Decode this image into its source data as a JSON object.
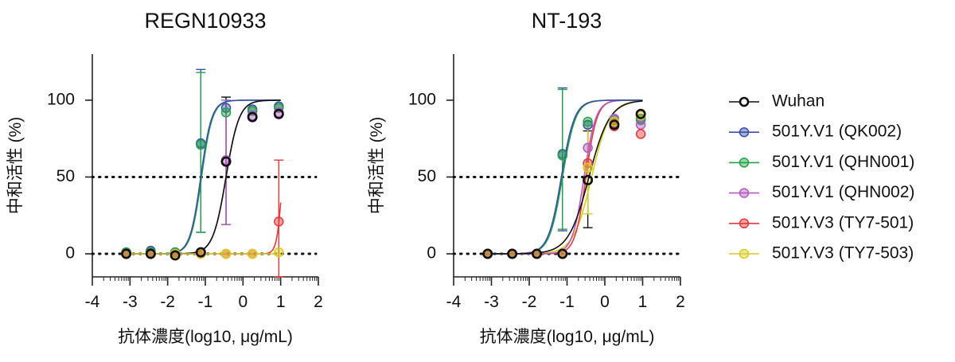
{
  "legend": [
    {
      "name": "Wuhan",
      "color": "#111111"
    },
    {
      "name": "501Y.V1 (QK002)",
      "color": "#3a4fa8"
    },
    {
      "name": "501Y.V1 (QHN001)",
      "color": "#22a34a"
    },
    {
      "name": "501Y.V1 (QHN002)",
      "color": "#b35ac4"
    },
    {
      "name": "501Y.V3 (TY7-501)",
      "color": "#e8383a"
    },
    {
      "name": "501Y.V3 (TY7-503)",
      "color": "#d8cc22"
    }
  ],
  "chart_data": [
    {
      "type": "scatter",
      "title": "REGN10933",
      "xlabel": "抗体濃度(log10, μg/mL)",
      "ylabel": "中和活性 (%)",
      "xlim": [
        -4,
        2
      ],
      "ylim": [
        -15,
        130
      ],
      "xticks": [
        -4,
        -3,
        -2,
        -1,
        0,
        1,
        2
      ],
      "yticks": [
        0,
        50,
        100
      ],
      "reference_lines": [
        0,
        50
      ],
      "series": [
        {
          "name": "Wuhan",
          "color": "#111111",
          "x": [
            -3.1,
            -2.45,
            -1.8,
            -1.12,
            -0.45,
            0.25,
            0.95
          ],
          "y": [
            0,
            0,
            -1,
            1,
            60,
            89,
            91
          ],
          "fit": {
            "ec50": -0.45,
            "hill": 2.5,
            "top": 100
          }
        },
        {
          "name": "501Y.V1 (QK002)",
          "color": "#3a4fa8",
          "x": [
            -3.1,
            -2.45,
            -1.8,
            -1.12,
            -0.45,
            0.25,
            0.95
          ],
          "y": [
            1,
            2,
            1,
            72,
            95,
            94,
            96
          ],
          "fit": {
            "ec50": -1.12,
            "hill": 3,
            "top": 100
          }
        },
        {
          "name": "501Y.V1 (QHN001)",
          "color": "#22a34a",
          "x": [
            -3.1,
            -2.45,
            -1.8,
            -1.12,
            -0.45,
            0.25,
            0.95
          ],
          "y": [
            1,
            1,
            1,
            71,
            92,
            93,
            95
          ],
          "fit": {
            "ec50": -1.1,
            "hill": 3,
            "top": 100
          }
        },
        {
          "name": "501Y.V1 (QHN002)",
          "color": "#b35ac4",
          "x": [
            -3.1,
            -2.45,
            -1.8,
            -1.12,
            -0.45,
            0.25,
            0.95
          ],
          "y": [
            0,
            0,
            0,
            1,
            61,
            90,
            92
          ],
          "fit": {
            "ec50": -0.45,
            "hill": 2.5,
            "top": 100
          }
        },
        {
          "name": "501Y.V3 (TY7-501)",
          "color": "#e8383a",
          "x": [
            -3.1,
            -2.45,
            -1.8,
            -1.12,
            -0.45,
            0.25,
            0.95
          ],
          "y": [
            0,
            0,
            0,
            0,
            0,
            0,
            21
          ],
          "fit": {
            "ec50": 1.05,
            "hill": 6,
            "top": 100
          }
        },
        {
          "name": "501Y.V3 (TY7-503)",
          "color": "#d8cc22",
          "x": [
            -3.1,
            -2.45,
            -1.8,
            -1.12,
            -0.45,
            0.25,
            0.95
          ],
          "y": [
            0,
            0,
            0,
            0,
            0,
            0,
            1
          ],
          "fit": null
        }
      ],
      "error_bars": [
        {
          "series": "501Y.V1 (QK002)",
          "x": -1.12,
          "y": 72,
          "low": 14,
          "high": 120
        },
        {
          "series": "501Y.V1 (QHN001)",
          "x": -1.12,
          "y": 71,
          "low": 14,
          "high": 118
        },
        {
          "series": "Wuhan",
          "x": -0.45,
          "y": 60,
          "low": 19,
          "high": 102
        },
        {
          "series": "501Y.V1 (QHN002)",
          "x": -0.45,
          "y": 61,
          "low": 19,
          "high": 100
        },
        {
          "series": "501Y.V3 (TY7-501)",
          "x": 0.95,
          "y": 21,
          "low": -15,
          "high": 61
        }
      ]
    },
    {
      "type": "scatter",
      "title": "NT-193",
      "xlabel": "抗体濃度(log10, μg/mL)",
      "ylabel": "中和活性 (%)",
      "xlim": [
        -4,
        2
      ],
      "ylim": [
        -15,
        130
      ],
      "xticks": [
        -4,
        -3,
        -2,
        -1,
        0,
        1,
        2
      ],
      "yticks": [
        0,
        50,
        100
      ],
      "reference_lines": [
        0,
        50
      ],
      "series": [
        {
          "name": "Wuhan",
          "color": "#111111",
          "x": [
            -3.1,
            -2.45,
            -1.8,
            -1.12,
            -0.45,
            0.25,
            0.95
          ],
          "y": [
            0,
            0,
            0,
            0,
            48,
            84,
            91
          ],
          "fit": {
            "ec50": -0.42,
            "hill": 1.6,
            "top": 100
          }
        },
        {
          "name": "501Y.V1 (QK002)",
          "color": "#3a4fa8",
          "x": [
            -3.1,
            -2.45,
            -1.8,
            -1.12,
            -0.45,
            0.25,
            0.95
          ],
          "y": [
            0,
            0,
            0,
            65,
            84,
            85,
            88
          ],
          "fit": {
            "ec50": -1.15,
            "hill": 2.5,
            "top": 100
          }
        },
        {
          "name": "501Y.V1 (QHN001)",
          "color": "#22a34a",
          "x": [
            -3.1,
            -2.45,
            -1.8,
            -1.12,
            -0.45,
            0.25,
            0.95
          ],
          "y": [
            0,
            0,
            0,
            64,
            86,
            87,
            87
          ],
          "fit": {
            "ec50": -1.12,
            "hill": 2.5,
            "top": 100
          }
        },
        {
          "name": "501Y.V1 (QHN002)",
          "color": "#b35ac4",
          "x": [
            -3.1,
            -2.45,
            -1.8,
            -1.12,
            -0.45,
            0.25,
            0.95
          ],
          "y": [
            0,
            0,
            0,
            0,
            69,
            88,
            84
          ],
          "fit": {
            "ec50": -0.55,
            "hill": 2.8,
            "top": 100
          }
        },
        {
          "name": "501Y.V3 (TY7-501)",
          "color": "#e8383a",
          "x": [
            -3.1,
            -2.45,
            -1.8,
            -1.12,
            -0.45,
            0.25,
            0.95
          ],
          "y": [
            0,
            0,
            0,
            0,
            59,
            83,
            78
          ],
          "fit": {
            "ec50": -0.5,
            "hill": 3,
            "top": 100
          }
        },
        {
          "name": "501Y.V3 (TY7-503)",
          "color": "#d8cc22",
          "x": [
            -3.1,
            -2.45,
            -1.8,
            -1.12,
            -0.45,
            0.25,
            0.95
          ],
          "y": [
            0,
            0,
            0,
            0,
            56,
            86,
            90
          ],
          "fit": {
            "ec50": -0.35,
            "hill": 1.8,
            "top": 100
          }
        }
      ],
      "error_bars": [
        {
          "series": "501Y.V1 (QK002)",
          "x": -1.12,
          "y": 65,
          "low": 15,
          "high": 108
        },
        {
          "series": "501Y.V1 (QHN001)",
          "x": -1.12,
          "y": 64,
          "low": 16,
          "high": 107
        },
        {
          "series": "Wuhan",
          "x": -0.45,
          "y": 48,
          "low": 17,
          "high": 80
        },
        {
          "series": "501Y.V3 (TY7-503)",
          "x": -0.45,
          "y": 56,
          "low": 26,
          "high": 86
        }
      ]
    }
  ]
}
